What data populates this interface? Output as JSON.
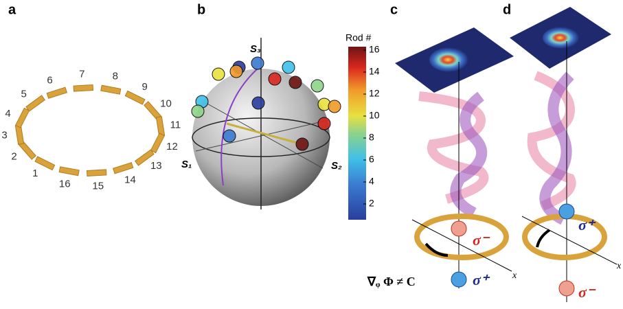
{
  "panel_labels": [
    "a",
    "b",
    "c",
    "d"
  ],
  "ring_labels": [
    "1",
    "2",
    "3",
    "4",
    "5",
    "6",
    "7",
    "8",
    "9",
    "10",
    "11",
    "12",
    "13",
    "14",
    "15",
    "16"
  ],
  "sphere_axes": [
    "S₃",
    "S₁",
    "S₂"
  ],
  "colorbar": {
    "title": "Rod #",
    "ticks": [
      "16",
      "14",
      "12",
      "10",
      "8",
      "6",
      "4",
      "2"
    ]
  },
  "panel_c": {
    "formula": "∇ᵩ Φ ≠ C",
    "sigma_top": "σ⁻",
    "sigma_bottom": "σ⁺",
    "axis": "x"
  },
  "panel_d": {
    "sigma_top": "σ⁺",
    "sigma_bottom": "σ⁻",
    "axis": "x"
  }
}
